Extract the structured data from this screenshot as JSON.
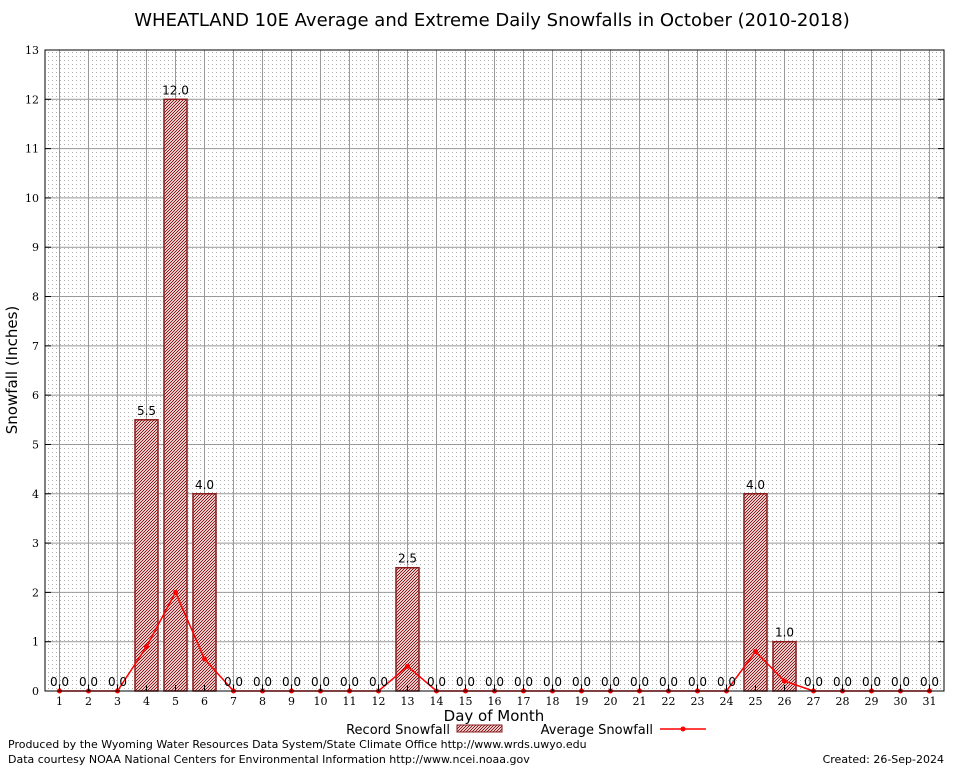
{
  "chart_data": {
    "type": "bar",
    "title": "WHEATLAND 10E Average and Extreme Daily Snowfalls in October (2010-2018)",
    "xlabel": "Day of Month",
    "ylabel": "Snowfall (Inches)",
    "ylim": [
      0,
      13
    ],
    "y_ticks": [
      "0",
      "1",
      "2",
      "3",
      "4",
      "5",
      "6",
      "7",
      "8",
      "9",
      "10",
      "11",
      "12",
      "13"
    ],
    "categories": [
      "1",
      "2",
      "3",
      "4",
      "5",
      "6",
      "7",
      "8",
      "9",
      "10",
      "11",
      "12",
      "13",
      "14",
      "15",
      "16",
      "17",
      "18",
      "19",
      "20",
      "21",
      "22",
      "23",
      "24",
      "25",
      "26",
      "27",
      "28",
      "29",
      "30",
      "31"
    ],
    "grid": true,
    "legend_position": "bottom",
    "series": [
      {
        "name": "Record Snowfall",
        "kind": "bar",
        "color": "#b22222",
        "values": [
          0,
          0,
          0,
          5.5,
          12.0,
          4.0,
          0,
          0,
          0,
          0,
          0,
          0,
          2.5,
          0,
          0,
          0,
          0,
          0,
          0,
          0,
          0,
          0,
          0,
          0,
          4.0,
          1.0,
          0,
          0,
          0,
          0,
          0
        ],
        "labels": [
          "0.0",
          "0.0",
          "0.0",
          "5.5",
          "12.0",
          "4.0",
          "0.0",
          "0.0",
          "0.0",
          "0.0",
          "0.0",
          "0.0",
          "2.5",
          "0.0",
          "0.0",
          "0.0",
          "0.0",
          "0.0",
          "0.0",
          "0.0",
          "0.0",
          "0.0",
          "0.0",
          "0.0",
          "4.0",
          "1.0",
          "0.0",
          "0.0",
          "0.0",
          "0.0",
          "0.0"
        ]
      },
      {
        "name": "Average Snowfall",
        "kind": "line",
        "color": "#ff0000",
        "values": [
          0,
          0,
          0,
          0.9,
          2.0,
          0.65,
          0,
          0,
          0,
          0,
          0,
          0,
          0.5,
          0,
          0,
          0,
          0,
          0,
          0,
          0,
          0,
          0,
          0,
          0,
          0.8,
          0.2,
          0,
          0,
          0,
          0,
          0
        ]
      }
    ]
  },
  "footer": {
    "produced_by": "Produced by the Wyoming Water Resources Data System/State Climate Office http://www.wrds.uwyo.edu",
    "data_courtesy": "Data courtesy NOAA National Centers for Environmental Information http://www.ncei.noaa.gov",
    "created": "Created:  26-Sep-2024"
  }
}
